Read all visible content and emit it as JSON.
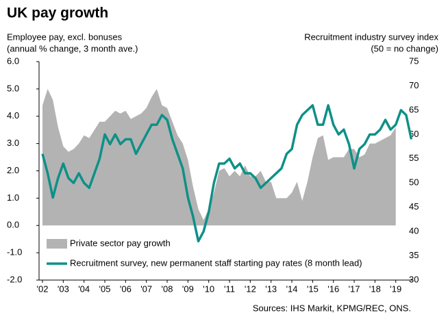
{
  "chart_data": {
    "type": "area-line",
    "title": "UK pay growth",
    "ylabel": [
      "Employee pay, excl. bonuses",
      "(annual % change, 3 month ave.)"
    ],
    "y2label": [
      "Recruitment industry survey index",
      "(50 = no change)"
    ],
    "source": "Sources: IHS Markit, KPMG/REC, ONS.",
    "legend": "bottom left",
    "x": [
      2002,
      2002.25,
      2002.5,
      2002.75,
      2003,
      2003.25,
      2003.5,
      2003.75,
      2004,
      2004.25,
      2004.5,
      2004.75,
      2005,
      2005.25,
      2005.5,
      2005.75,
      2006,
      2006.25,
      2006.5,
      2006.75,
      2007,
      2007.25,
      2007.5,
      2007.75,
      2008,
      2008.25,
      2008.5,
      2008.75,
      2009,
      2009.25,
      2009.5,
      2009.75,
      2010,
      2010.25,
      2010.5,
      2010.75,
      2011,
      2011.25,
      2011.5,
      2011.75,
      2012,
      2012.25,
      2012.5,
      2012.75,
      2013,
      2013.25,
      2013.5,
      2013.75,
      2014,
      2014.25,
      2014.5,
      2014.75,
      2015,
      2015.25,
      2015.5,
      2015.75,
      2016,
      2016.25,
      2016.5,
      2016.75,
      2017,
      2017.25,
      2017.5,
      2017.75,
      2018,
      2018.25,
      2018.5,
      2018.75,
      2019,
      2019.25,
      2019.5,
      2019.75
    ],
    "series": [
      {
        "name": "Private sector pay growth",
        "kind": "area",
        "color": "#b3b3b3",
        "values": [
          4.4,
          5.0,
          4.6,
          3.6,
          2.9,
          2.7,
          2.8,
          3.0,
          3.3,
          3.2,
          3.5,
          3.8,
          3.8,
          4.0,
          4.2,
          4.1,
          4.2,
          3.9,
          4.0,
          4.1,
          4.3,
          4.7,
          5.0,
          4.4,
          4.3,
          3.8,
          3.3,
          3.0,
          2.4,
          1.4,
          0.6,
          0.2,
          0.6,
          1.2,
          2.0,
          2.1,
          1.8,
          2.0,
          1.8,
          2.2,
          1.8,
          1.8,
          2.0,
          1.6,
          1.6,
          1.0,
          1.0,
          1.0,
          1.2,
          1.6,
          0.9,
          1.6,
          2.5,
          3.2,
          3.3,
          2.4,
          2.5,
          2.5,
          2.5,
          2.8,
          2.8,
          2.5,
          2.6,
          3.0,
          3.0,
          3.1,
          3.2,
          3.3,
          3.6,
          null,
          null,
          null
        ]
      },
      {
        "name": "Recruitment survey, new permanent staff starting pay rates (8 month lead)",
        "kind": "line",
        "axis": "y2",
        "color": "#0e9087",
        "values": [
          56,
          52,
          47,
          51,
          54,
          51,
          50,
          52,
          50,
          49,
          52,
          55,
          60,
          58,
          60,
          58,
          59,
          59,
          56,
          58,
          60,
          62,
          62,
          64,
          63,
          59,
          56,
          53,
          47,
          43,
          38,
          40,
          44,
          50,
          54,
          54,
          55,
          53,
          54,
          52,
          52,
          51,
          49,
          50,
          51,
          52,
          53,
          56,
          57,
          62,
          64,
          65,
          66,
          62,
          62,
          66,
          62,
          60,
          61,
          58,
          53,
          57,
          58,
          60,
          60,
          61,
          63,
          61,
          62,
          65,
          64,
          59
        ]
      }
    ],
    "xlim": [
      2002,
      2019.8
    ],
    "xticks": [
      {
        "value": 2002,
        "label": "'02"
      },
      {
        "value": 2003,
        "label": "'03"
      },
      {
        "value": 2004,
        "label": "'04"
      },
      {
        "value": 2005,
        "label": "'05"
      },
      {
        "value": 2006,
        "label": "'06"
      },
      {
        "value": 2007,
        "label": "'07"
      },
      {
        "value": 2008,
        "label": "'08"
      },
      {
        "value": 2009,
        "label": "'09"
      },
      {
        "value": 2010,
        "label": "'10"
      },
      {
        "value": 2011,
        "label": "'11"
      },
      {
        "value": 2012,
        "label": "'12"
      },
      {
        "value": 2013,
        "label": "'13"
      },
      {
        "value": 2014,
        "label": "'14"
      },
      {
        "value": 2015,
        "label": "'15"
      },
      {
        "value": 2016,
        "label": "'16"
      },
      {
        "value": 2017,
        "label": "'17"
      },
      {
        "value": 2018,
        "label": "'18"
      },
      {
        "value": 2019,
        "label": "'19"
      }
    ],
    "ylim": [
      -2,
      6
    ],
    "yticks": [
      {
        "value": -2,
        "label": "-2.0"
      },
      {
        "value": -1,
        "label": "-1.0"
      },
      {
        "value": 0,
        "label": "0.0"
      },
      {
        "value": 1,
        "label": "1.0"
      },
      {
        "value": 2,
        "label": "2.0"
      },
      {
        "value": 3,
        "label": "3.0"
      },
      {
        "value": 4,
        "label": "4.0"
      },
      {
        "value": 5,
        "label": "5.0"
      },
      {
        "value": 6,
        "label": "6.0"
      }
    ],
    "y2lim": [
      30,
      75
    ],
    "y2ticks": [
      30,
      35,
      40,
      45,
      50,
      55,
      60,
      65,
      70,
      75
    ]
  }
}
